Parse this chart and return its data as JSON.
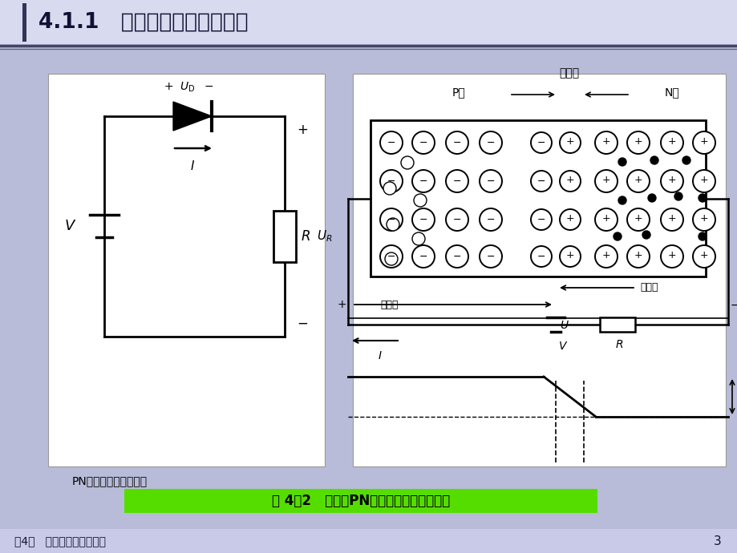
{
  "bg_color": "#b8bcd8",
  "title_bg": "#d8daf0",
  "title_text": "4.1.1   半导体光源的物理基础",
  "caption_green_bg": "#55dd00",
  "caption_text": "图 4－2   半导体PN结加正向电压时的情况",
  "sub_caption": "PN结加正向电压的情况",
  "footer_text": "第4章   发光二级管显示技术",
  "footer_bg": "#c8cae8",
  "page_num": "3",
  "panel_bg": "#f5f5ff"
}
